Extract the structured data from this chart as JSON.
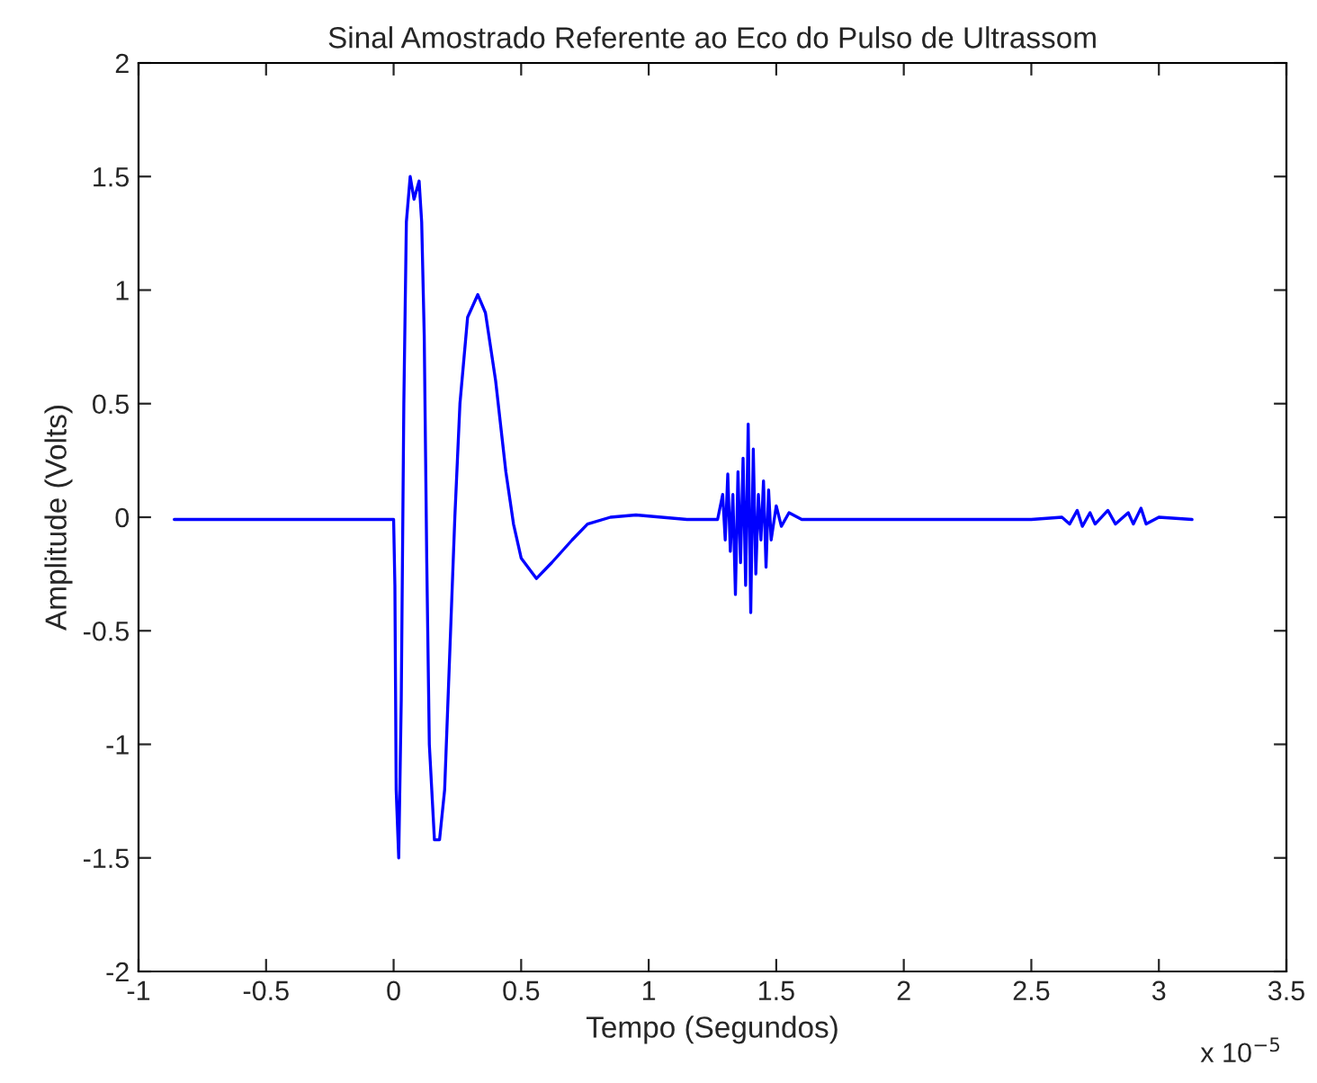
{
  "chart_data": {
    "type": "line",
    "title": "Sinal Amostrado Referente ao Eco do Pulso de Ultrassom",
    "xlabel": "Tempo (Segundos)",
    "ylabel": "Amplitude (Volts)",
    "annotations": [
      "x 10$^{−5}$"
    ],
    "xlim": [
      -1,
      3.5
    ],
    "xticks": [
      -1,
      -0.5,
      0,
      0.5,
      1,
      1.5,
      2,
      2.5,
      3,
      3.5
    ],
    "ylim": [
      -2,
      2
    ],
    "yticks": [
      -2,
      -1.5,
      -1,
      -0.5,
      0,
      0.5,
      1,
      1.5,
      2
    ],
    "grid": false,
    "line_style": "solid",
    "marker": "none",
    "series": [
      {
        "color": "#0000ff",
        "x": [
          -0.86,
          -0.5,
          -0.2,
          0.0,
          0.005,
          0.01,
          0.02,
          0.03,
          0.04,
          0.05,
          0.065,
          0.08,
          0.1,
          0.11,
          0.12,
          0.13,
          0.14,
          0.16,
          0.18,
          0.2,
          0.22,
          0.24,
          0.26,
          0.29,
          0.33,
          0.36,
          0.4,
          0.44,
          0.47,
          0.5,
          0.56,
          0.62,
          0.7,
          0.76,
          0.85,
          0.95,
          1.05,
          1.15,
          1.27,
          1.29,
          1.3,
          1.31,
          1.32,
          1.33,
          1.34,
          1.35,
          1.36,
          1.37,
          1.38,
          1.39,
          1.4,
          1.41,
          1.42,
          1.43,
          1.44,
          1.45,
          1.46,
          1.47,
          1.48,
          1.5,
          1.52,
          1.55,
          1.6,
          2.0,
          2.5,
          2.62,
          2.65,
          2.68,
          2.7,
          2.73,
          2.75,
          2.8,
          2.83,
          2.88,
          2.9,
          2.93,
          2.95,
          3.0,
          3.13
        ],
        "values": [
          -0.01,
          -0.01,
          -0.01,
          -0.01,
          -0.3,
          -1.2,
          -1.5,
          -0.8,
          0.5,
          1.3,
          1.5,
          1.4,
          1.48,
          1.3,
          0.8,
          -0.2,
          -1.0,
          -1.42,
          -1.42,
          -1.2,
          -0.6,
          0.0,
          0.5,
          0.88,
          0.98,
          0.9,
          0.6,
          0.2,
          -0.03,
          -0.18,
          -0.27,
          -0.2,
          -0.1,
          -0.03,
          0.0,
          0.01,
          0.0,
          -0.01,
          -0.01,
          0.1,
          -0.1,
          0.19,
          -0.15,
          0.1,
          -0.34,
          0.2,
          -0.2,
          0.26,
          -0.3,
          0.41,
          -0.42,
          0.3,
          -0.25,
          0.1,
          -0.1,
          0.16,
          -0.22,
          0.12,
          -0.1,
          0.05,
          -0.04,
          0.02,
          -0.01,
          -0.01,
          -0.01,
          0.0,
          -0.03,
          0.03,
          -0.04,
          0.02,
          -0.03,
          0.03,
          -0.03,
          0.02,
          -0.03,
          0.04,
          -0.03,
          0.0,
          -0.01
        ]
      }
    ]
  }
}
